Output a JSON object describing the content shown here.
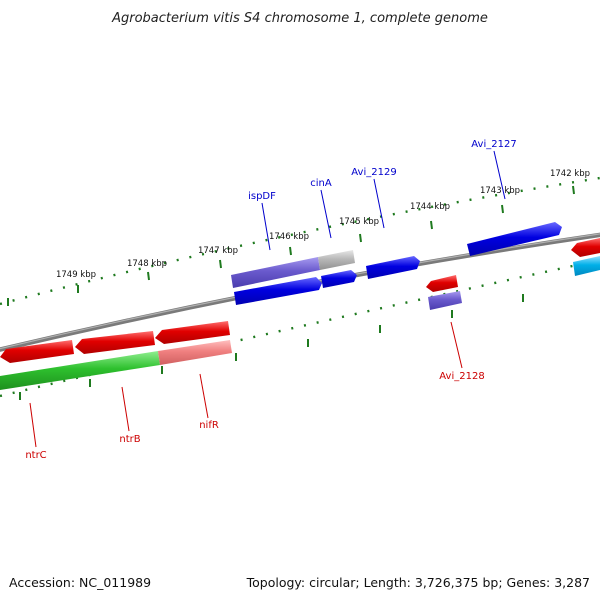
{
  "title": "Agrobacterium vitis S4 chromosome 1, complete genome",
  "footer": {
    "accession": "Accession: NC_011989",
    "topology": "Topology: circular; Length: 3,726,375 bp; Genes: 3,287"
  },
  "colors": {
    "backbone": "#7a7a7a",
    "tick": "#1f7a1f",
    "forward_label": "#0000cc",
    "reverse_label": "#cc0000",
    "gene_blue": "#0000e0",
    "gene_purple": "#6a5acd",
    "gene_red": "#e00000",
    "gene_green": "#2ec02e",
    "gene_pink": "#f08080",
    "gene_gray": "#b8b8b8",
    "gene_cyan": "#00b0e8"
  },
  "kbp_labels": [
    "1742 kbp",
    "1743 kbp",
    "1744 kbp",
    "1745 kbp",
    "1746 kbp",
    "1747 kbp",
    "1748 kbp",
    "1749 kbp"
  ],
  "gene_labels": {
    "forward": [
      "ispDF",
      "cinA",
      "Avi_2129",
      "Avi_2127"
    ],
    "reverse": [
      "ntrC",
      "ntrB",
      "nifR",
      "Avi_2128"
    ]
  }
}
